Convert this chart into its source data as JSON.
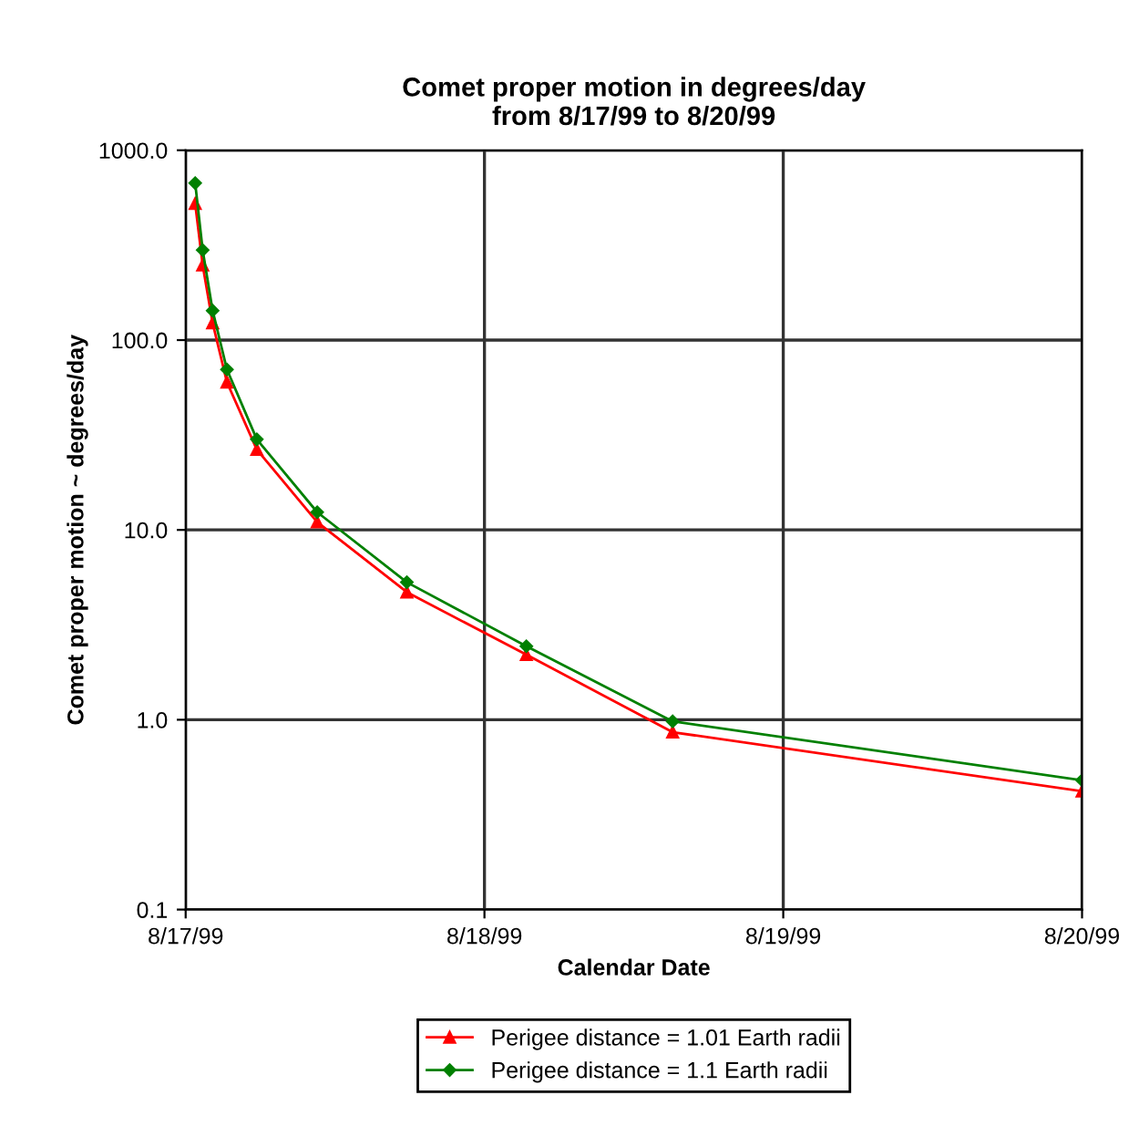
{
  "chart_data": {
    "type": "line",
    "title": "Comet proper motion in degrees/day\nfrom 8/17/99 to 8/20/99",
    "xlabel": "Calendar Date",
    "ylabel": "Comet proper motion ~ degrees/day",
    "x": [
      "1999-08-17T00:46",
      "1999-08-17T01:22",
      "1999-08-17T02:10",
      "1999-08-17T03:19",
      "1999-08-17T05:43",
      "1999-08-17T10:34",
      "1999-08-17T17:46",
      "1999-08-18T03:22",
      "1999-08-18T15:07",
      "1999-08-20T00:00"
    ],
    "series": [
      {
        "name": "Perigee distance = 1.01 Earth radii",
        "color": "#ff0000",
        "marker": "triangle",
        "values": [
          523,
          248,
          123,
          60,
          26.5,
          11.0,
          4.7,
          2.2,
          0.86,
          0.42
        ]
      },
      {
        "name": "Perigee distance = 1.1 Earth radii",
        "color": "#008000",
        "marker": "diamond",
        "values": [
          671,
          298,
          143,
          70,
          30,
          12.4,
          5.3,
          2.44,
          0.98,
          0.48
        ]
      }
    ],
    "log": "y",
    "ylim": [
      0.1,
      1000
    ],
    "yticks": [
      {
        "value": 0.1,
        "label": "0.1"
      },
      {
        "value": 1,
        "label": "1.0"
      },
      {
        "value": 10,
        "label": "10.0"
      },
      {
        "value": 100,
        "label": "100.0"
      },
      {
        "value": 1000,
        "label": "1000.0"
      }
    ],
    "xlim": [
      "1999-08-17",
      "1999-08-20"
    ],
    "xticks": [
      {
        "value": "1999-08-17",
        "label": "8/17/99"
      },
      {
        "value": "1999-08-18",
        "label": "8/18/99"
      },
      {
        "value": "1999-08-19",
        "label": "8/19/99"
      },
      {
        "value": "1999-08-20",
        "label": "8/20/99"
      }
    ],
    "grid": true,
    "legend": "bottom",
    "line_style": "solid"
  }
}
